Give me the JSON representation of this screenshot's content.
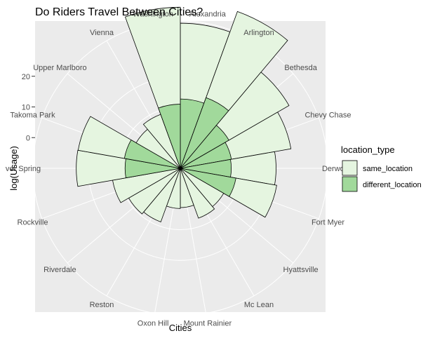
{
  "chart_data": {
    "type": "bar",
    "subtype": "polar",
    "title": "Do Riders Travel Between Cities?",
    "xlabel": "Cities",
    "ylabel": "log(Usage)",
    "categories": [
      "Alexandria",
      "Arlington",
      "Bethesda",
      "Chevy Chase",
      "Derwood",
      "Fort Myer",
      "Hyattsville",
      "Mc Lean",
      "Mount Rainier",
      "Oxon Hill",
      "Reston",
      "Riverdale",
      "Rockville",
      "Silver Spring",
      "Takoma Park",
      "Upper Marlboro",
      "Vienna",
      "Washington"
    ],
    "visible_category_labels": [
      "Alexandria",
      "Arlington",
      "Bethesda",
      "Chevy Chase",
      "Derwood",
      "Fort Myer",
      "Hyattsville",
      "Mc Lean",
      "Mount Rainier",
      "Oxon Hill",
      "Reston",
      "Riverdale",
      "Rockville",
      "ver Spring",
      "Takoma Park",
      "Upper Marlboro",
      "Vienna",
      "Washington"
    ],
    "series": [
      {
        "name": "same_location",
        "color": "#e5f5e0",
        "values": [
          24.7,
          29.9,
          22.6,
          19.7,
          14.6,
          13.5,
          6.3,
          7.3,
          2.8,
          3.1,
          8.6,
          9.4,
          12.4,
          15.9,
          15.3,
          6.6,
          8.7,
          31.6
        ]
      },
      {
        "name": "different_location",
        "color": "#a1d99b",
        "values": [
          12.6,
          14.5,
          8.3,
          6.9,
          6.6,
          8.4,
          0,
          0,
          0,
          0,
          0,
          0,
          0,
          8.0,
          8.5,
          0,
          0,
          10.9
        ]
      }
    ],
    "radial_axis": {
      "ticks": [
        0,
        10,
        20
      ],
      "tick_labels": [
        "0",
        "10",
        "20"
      ],
      "range": [
        -10,
        38
      ]
    },
    "stacked": true,
    "legend": {
      "title": "location_type",
      "position": "right",
      "entries": [
        "same_location",
        "different_location"
      ]
    },
    "grid": true,
    "colors": {
      "panel": "#ebebeb",
      "grid": "#ffffff",
      "bar_outline": "#000000"
    }
  }
}
